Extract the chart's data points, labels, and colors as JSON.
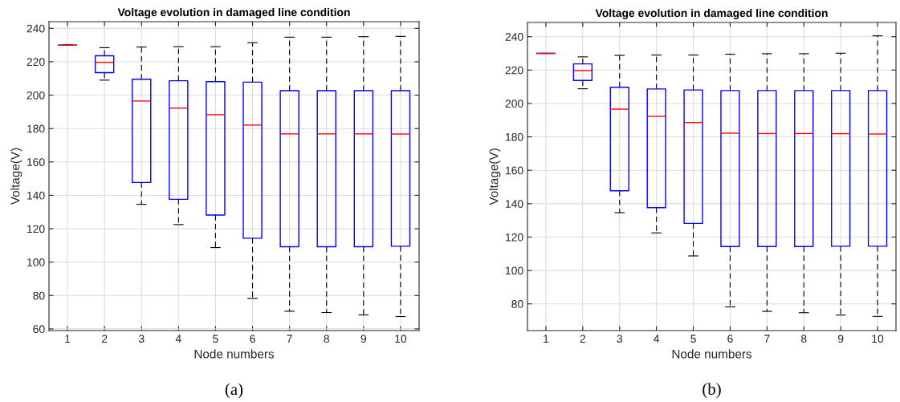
{
  "chart_data": [
    {
      "type": "box",
      "title": "Voltage evolution in damaged line condition",
      "xlabel": "Node numbers",
      "ylabel": "Voltage(V)",
      "categories": [
        "1",
        "2",
        "3",
        "4",
        "5",
        "6",
        "7",
        "8",
        "9",
        "10"
      ],
      "ylim": [
        59,
        244
      ],
      "yticks": [
        60,
        80,
        100,
        120,
        140,
        160,
        180,
        200,
        220,
        240
      ],
      "grid": true,
      "annotations": [
        "(a)"
      ],
      "series": [
        {
          "color": "#0000ff",
          "boxes": [
            {
              "low": 230,
              "q1": 230,
              "median": 230,
              "q3": 230,
              "high": 230
            },
            {
              "low": 209,
              "q1": 213.5,
              "median": 219.6,
              "q3": 223.6,
              "high": 228.4
            },
            {
              "low": 134.6,
              "q1": 147.7,
              "median": 196.5,
              "q3": 209.5,
              "high": 228.8
            },
            {
              "low": 122.5,
              "q1": 137.6,
              "median": 192.2,
              "q3": 208.6,
              "high": 229
            },
            {
              "low": 108.7,
              "q1": 128.2,
              "median": 188.3,
              "q3": 208.1,
              "high": 229
            },
            {
              "low": 78.3,
              "q1": 114.3,
              "median": 182.1,
              "q3": 207.8,
              "high": 231.4
            },
            {
              "low": 70.6,
              "q1": 109.2,
              "median": 176.8,
              "q3": 202.7,
              "high": 234.7
            },
            {
              "low": 69.8,
              "q1": 109.2,
              "median": 176.8,
              "q3": 202.7,
              "high": 234.7
            },
            {
              "low": 68.4,
              "q1": 109.2,
              "median": 176.8,
              "q3": 202.7,
              "high": 235
            },
            {
              "low": 67.4,
              "q1": 109.5,
              "median": 176.7,
              "q3": 202.7,
              "high": 235.2
            }
          ]
        }
      ]
    },
    {
      "type": "box",
      "title": "Voltage evolution in damaged line condition",
      "xlabel": "Node numbers",
      "ylabel": "Voltage(V)",
      "categories": [
        "1",
        "2",
        "3",
        "4",
        "5",
        "6",
        "7",
        "8",
        "9",
        "10"
      ],
      "ylim": [
        64,
        248.5
      ],
      "yticks": [
        80,
        100,
        120,
        140,
        160,
        180,
        200,
        220,
        240
      ],
      "grid": true,
      "annotations": [
        "(b)"
      ],
      "series": [
        {
          "color": "#0000ff",
          "boxes": [
            {
              "low": 230,
              "q1": 230,
              "median": 230,
              "q3": 230,
              "high": 230
            },
            {
              "low": 208.8,
              "q1": 213.8,
              "median": 219.7,
              "q3": 223.7,
              "high": 227.9
            },
            {
              "low": 134.6,
              "q1": 147.7,
              "median": 196.6,
              "q3": 209.7,
              "high": 228.8
            },
            {
              "low": 122.5,
              "q1": 137.6,
              "median": 192.3,
              "q3": 208.7,
              "high": 229
            },
            {
              "low": 108.7,
              "q1": 128.2,
              "median": 188.6,
              "q3": 208.1,
              "high": 229
            },
            {
              "low": 78.2,
              "q1": 114.3,
              "median": 182.2,
              "q3": 207.7,
              "high": 229.5
            },
            {
              "low": 75.5,
              "q1": 114.3,
              "median": 182,
              "q3": 207.7,
              "high": 229.8
            },
            {
              "low": 74.7,
              "q1": 114.3,
              "median": 182,
              "q3": 207.7,
              "high": 229.8
            },
            {
              "low": 73.3,
              "q1": 114.5,
              "median": 181.9,
              "q3": 207.7,
              "high": 230.1
            },
            {
              "low": 72.5,
              "q1": 114.5,
              "median": 181.7,
              "q3": 207.7,
              "high": 240.5
            }
          ]
        }
      ]
    }
  ]
}
